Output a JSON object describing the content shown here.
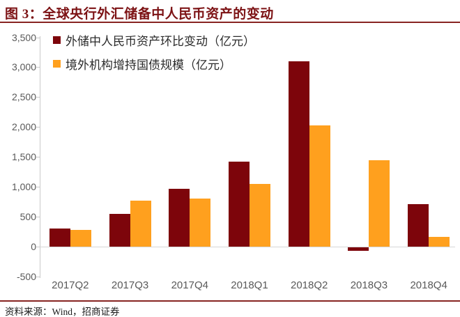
{
  "title": "图 3：全球央行外汇储备中人民币资产的变动",
  "source": "资料来源：Wind，招商证券",
  "colors": {
    "series1": "#7D050B",
    "series2": "#FFA01E",
    "title_text": "#7C1214",
    "rule": "#872422",
    "axis_line": "#C9C9C9",
    "axis_label": "#595959"
  },
  "chart_data": {
    "type": "bar",
    "title": "图 3：全球央行外汇储备中人民币资产的变动",
    "categories": [
      "2017Q2",
      "2017Q3",
      "2017Q4",
      "2018Q1",
      "2018Q2",
      "2018Q3",
      "2018Q4"
    ],
    "series": [
      {
        "name": "外储中人民币资产环比变动（亿元）",
        "color": "#7D050B",
        "values": [
          300,
          540,
          960,
          1420,
          3100,
          -60,
          710
        ]
      },
      {
        "name": "境外机构增持国债规模（亿元）",
        "color": "#FFA01E",
        "values": [
          280,
          770,
          800,
          1050,
          2030,
          1440,
          160
        ]
      }
    ],
    "xlabel": "",
    "ylabel": "",
    "ylim": [
      -500,
      3500
    ],
    "ytick_step": 500,
    "ytick_labels": [
      "3,500",
      "3,000",
      "2,500",
      "2,000",
      "1,500",
      "1,000",
      "500",
      "0",
      "-500"
    ],
    "legend_position": "top-left",
    "grid": false
  }
}
